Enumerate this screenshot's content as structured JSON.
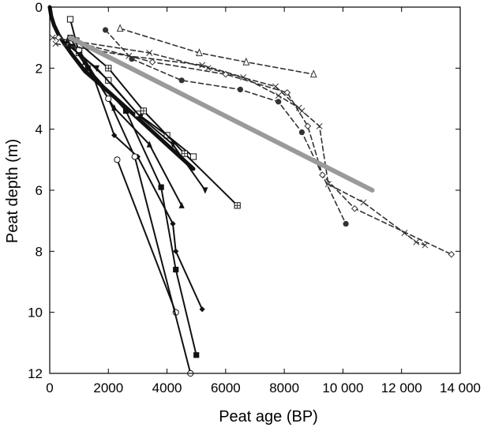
{
  "chart_data": {
    "type": "line",
    "title": "",
    "xlabel": "Peat age (BP)",
    "ylabel": "Peat depth (m)",
    "xlim": [
      0,
      14000
    ],
    "ylim": [
      0,
      12
    ],
    "y_inverted": true,
    "grid": false,
    "xticks": [
      0,
      2000,
      4000,
      6000,
      8000,
      10000,
      12000,
      14000
    ],
    "xtick_labels": [
      "0",
      "2000",
      "4000",
      "6000",
      "8000",
      "10 000",
      "12 000",
      "14 000"
    ],
    "yticks": [
      0,
      2,
      4,
      6,
      8,
      10,
      12
    ],
    "ytick_labels": [
      "0",
      "2",
      "4",
      "6",
      "8",
      "10",
      "12"
    ],
    "colors": {
      "solid": "#111111",
      "dashed": "#333333",
      "trend": "#9a9a9a"
    },
    "series": [
      {
        "style": "solid-thick",
        "points": [
          [
            0,
            0
          ],
          [
            50,
            0.3
          ],
          [
            150,
            0.6
          ],
          [
            300,
            0.9
          ],
          [
            500,
            1.2
          ],
          [
            800,
            1.6
          ],
          [
            1200,
            2.1
          ],
          [
            1800,
            2.6
          ],
          [
            2500,
            3.2
          ],
          [
            3300,
            3.9
          ],
          [
            4100,
            4.6
          ],
          [
            4900,
            5.3
          ]
        ]
      },
      {
        "style": "solid",
        "marker": "square-open",
        "points": [
          [
            700,
            0.4
          ],
          [
            1000,
            1.5
          ],
          [
            2000,
            2.4
          ],
          [
            3000,
            3.5
          ],
          [
            4000,
            4.2
          ],
          [
            4900,
            4.9
          ]
        ]
      },
      {
        "style": "solid",
        "marker": "square-filled",
        "points": [
          [
            700,
            1.0
          ],
          [
            1300,
            2.0
          ],
          [
            2600,
            3.4
          ],
          [
            3800,
            5.9
          ],
          [
            4300,
            8.6
          ],
          [
            5000,
            11.4
          ]
        ]
      },
      {
        "style": "solid",
        "marker": "triangle-down",
        "points": [
          [
            700,
            1.3
          ],
          [
            1600,
            2.0
          ],
          [
            3100,
            3.6
          ],
          [
            4200,
            4.5
          ],
          [
            5300,
            6.0
          ]
        ]
      },
      {
        "style": "solid",
        "marker": "triangle-up",
        "points": [
          [
            600,
            1.1
          ],
          [
            1200,
            1.8
          ],
          [
            2200,
            3.3
          ],
          [
            3400,
            4.5
          ],
          [
            4500,
            6.5
          ]
        ]
      },
      {
        "style": "solid",
        "marker": "diamond",
        "points": [
          [
            800,
            1.3
          ],
          [
            1500,
            2.3
          ],
          [
            2200,
            4.2
          ],
          [
            3000,
            4.9
          ],
          [
            4200,
            7.1
          ],
          [
            4300,
            8.0
          ],
          [
            5200,
            9.9
          ]
        ]
      },
      {
        "style": "solid",
        "marker": "square-crossed",
        "points": [
          [
            900,
            1.1
          ],
          [
            2000,
            2.0
          ],
          [
            3200,
            3.4
          ],
          [
            4600,
            4.8
          ],
          [
            6400,
            6.5
          ]
        ]
      },
      {
        "style": "solid",
        "marker": "circle-open",
        "points": [
          [
            2300,
            5.0
          ],
          [
            4300,
            10.0
          ]
        ]
      },
      {
        "style": "solid",
        "marker": "circle-open",
        "points": [
          [
            1000,
            1.4
          ],
          [
            2000,
            3.0
          ],
          [
            2900,
            4.9
          ],
          [
            4800,
            12.0
          ]
        ]
      },
      {
        "style": "dashed",
        "marker": "x",
        "points": [
          [
            100,
            1.0
          ],
          [
            3400,
            1.5
          ],
          [
            5400,
            2.0
          ],
          [
            7700,
            2.6
          ],
          [
            8600,
            3.4
          ],
          [
            9200,
            3.9
          ],
          [
            9500,
            5.8
          ],
          [
            10700,
            6.4
          ],
          [
            12100,
            7.4
          ],
          [
            12500,
            7.7
          ],
          [
            12800,
            7.8
          ]
        ]
      },
      {
        "style": "dashed",
        "marker": "circle-filled",
        "points": [
          [
            1900,
            0.75
          ],
          [
            2800,
            1.7
          ],
          [
            4500,
            2.4
          ],
          [
            6500,
            2.7
          ],
          [
            7800,
            3.1
          ],
          [
            8600,
            4.1
          ],
          [
            10100,
            7.1
          ]
        ]
      },
      {
        "style": "dashed",
        "marker": "triangle-open",
        "points": [
          [
            2400,
            0.7
          ],
          [
            5100,
            1.5
          ],
          [
            6700,
            1.8
          ],
          [
            9000,
            2.2
          ]
        ]
      },
      {
        "style": "dashed",
        "marker": "diamond-open",
        "points": [
          [
            300,
            1.0
          ],
          [
            3500,
            1.8
          ],
          [
            6000,
            2.2
          ],
          [
            8100,
            2.8
          ],
          [
            8800,
            3.9
          ],
          [
            9300,
            5.5
          ],
          [
            10400,
            6.6
          ],
          [
            13700,
            8.1
          ]
        ]
      },
      {
        "style": "dashed",
        "marker": "x",
        "points": [
          [
            200,
            1.2
          ],
          [
            2700,
            1.6
          ],
          [
            5200,
            1.9
          ],
          [
            6600,
            2.3
          ],
          [
            7800,
            2.9
          ],
          [
            8500,
            3.3
          ]
        ]
      },
      {
        "style": "trend",
        "points": [
          [
            700,
            1.0
          ],
          [
            11000,
            6.0
          ]
        ]
      }
    ]
  }
}
